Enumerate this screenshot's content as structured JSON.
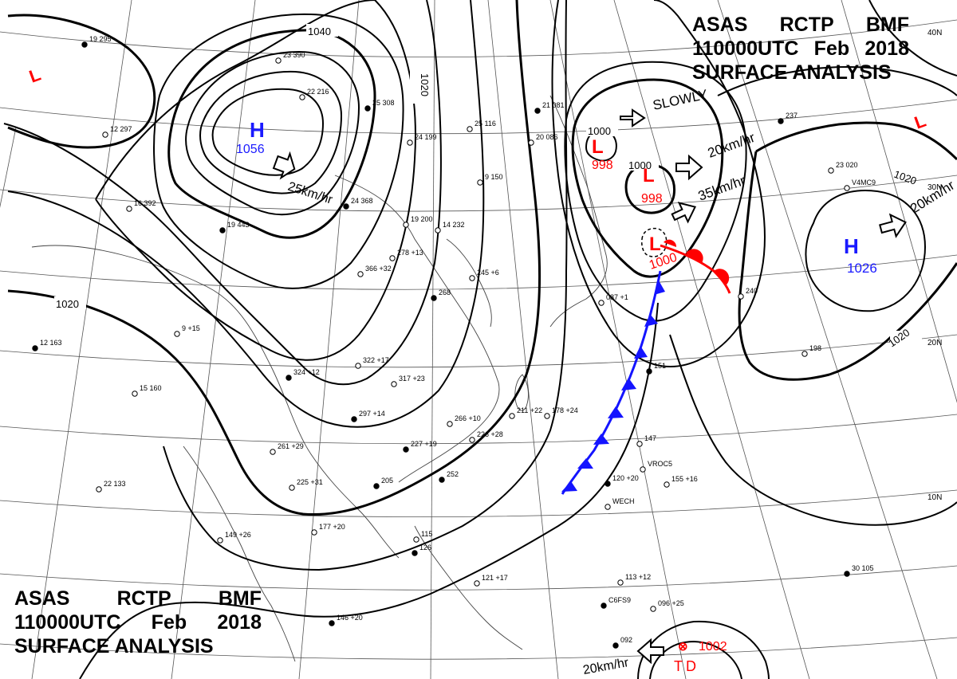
{
  "header": {
    "line1": [
      "ASAS",
      "RCTP",
      "BMF"
    ],
    "line2": [
      "110000UTC",
      "Feb",
      "2018"
    ],
    "line3": "SURFACE ANALYSIS"
  },
  "colors": {
    "high": "#1a1aff",
    "low": "#ff0000",
    "isobar": "#000000",
    "cold_front": "#1414ff",
    "warm_front": "#ff0000",
    "grid": "#555555"
  },
  "latitude_labels": [
    "40N",
    "30N",
    "20N",
    "10N"
  ],
  "isobar_labels": [
    "1040",
    "1020",
    "1020",
    "1020",
    "1000",
    "1000",
    "1020"
  ],
  "pressure_systems": [
    {
      "type": "H",
      "value": "1056",
      "motion": "25km/hr"
    },
    {
      "type": "H",
      "value": "1026",
      "motion": "20km/hr"
    },
    {
      "type": "L",
      "value": "998",
      "motion": "SLOWLY"
    },
    {
      "type": "L",
      "value": "998",
      "motion": "20km/hr"
    },
    {
      "type": "L",
      "value": "1000",
      "motion": "35km/hr"
    },
    {
      "type": "TD",
      "value": "1002",
      "motion": "20km/hr"
    }
  ],
  "extra_low_markers": [
    "L",
    "L"
  ],
  "station_texts": [
    "19 295",
    "12 297",
    "16 392",
    "19 443",
    "23 390",
    "22 216",
    "25 308",
    "25 116",
    "24 199",
    "24 368",
    "19 200",
    "14 232",
    "21 081",
    "20 086",
    "9 150",
    "12 163",
    "15 160",
    "9 +15",
    "324 +12",
    "322 +17",
    "317 +23",
    "297 +14",
    "261 +29",
    "225 +31",
    "205",
    "149 +26",
    "177 +20",
    "146 +20",
    "266 +10",
    "226 +28",
    "227 +19",
    "211 +22",
    "178 +24",
    "151",
    "147",
    "155 +16",
    "120 +20",
    "113 +12",
    "096 +25",
    "092",
    "198",
    "240",
    "237",
    "23 020",
    "22 133",
    "30 105",
    "121 +17",
    "115",
    "126",
    "087 +1",
    "278 +13",
    "268",
    "245 +6",
    "366 +32",
    "252",
    "VROC5",
    "WECH",
    "C6FS9",
    "V4MC9"
  ]
}
